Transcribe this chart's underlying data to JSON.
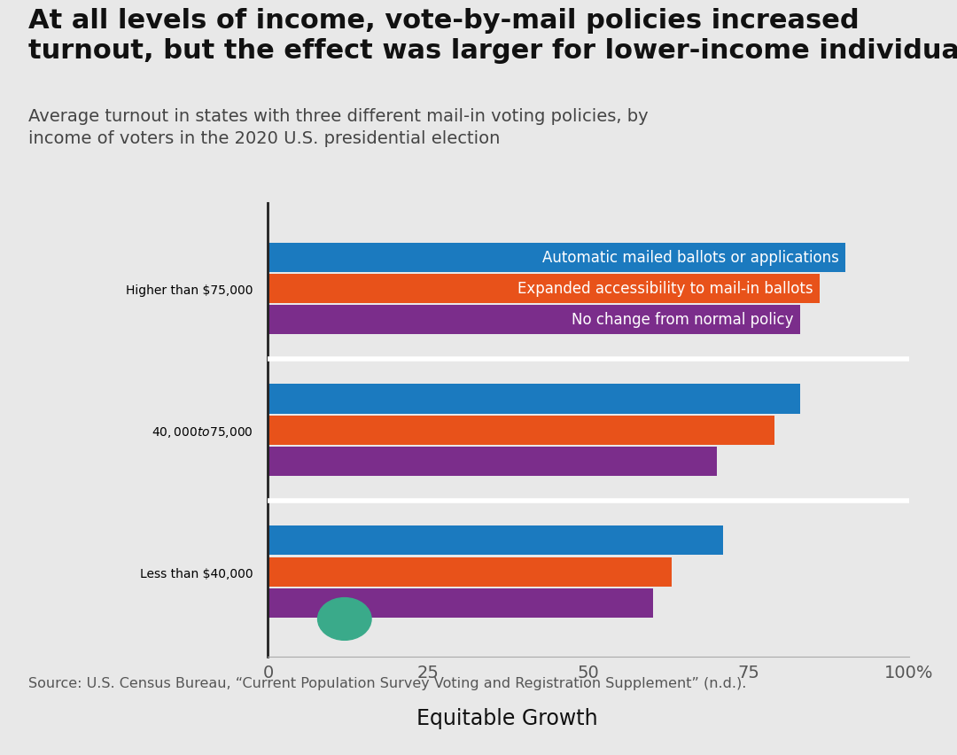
{
  "title": "At all levels of income, vote-by-mail policies increased\nturnout, but the effect was larger for lower-income individuals",
  "subtitle": "Average turnout in states with three different mail-in voting policies, by\nincome of voters in the 2020 U.S. presidential election",
  "source": "Source: U.S. Census Bureau, “Current Population Survey Voting and Registration Supplement” (n.d.).",
  "categories": [
    "Higher than $75,000",
    "$40,000 to $75,000",
    "Less than $40,000"
  ],
  "series": [
    {
      "label": "Automatic mailed ballots or applications",
      "color": "#1b7abf",
      "values": [
        90,
        83,
        71
      ]
    },
    {
      "label": "Expanded accessibility to mail-in ballots",
      "color": "#e8521a",
      "values": [
        86,
        79,
        63
      ]
    },
    {
      "label": "No change from normal policy",
      "color": "#7b2d8b",
      "values": [
        83,
        70,
        60
      ]
    }
  ],
  "xlim": [
    0,
    100
  ],
  "xticks": [
    0,
    25,
    50,
    75,
    100
  ],
  "xticklabels": [
    "0",
    "25",
    "50",
    "75",
    "100%"
  ],
  "background_color": "#e8e8e8",
  "bar_height": 0.22,
  "title_fontsize": 22,
  "subtitle_fontsize": 14,
  "label_fontsize": 14,
  "tick_fontsize": 14,
  "source_fontsize": 11.5,
  "bar_label_fontsize": 12
}
